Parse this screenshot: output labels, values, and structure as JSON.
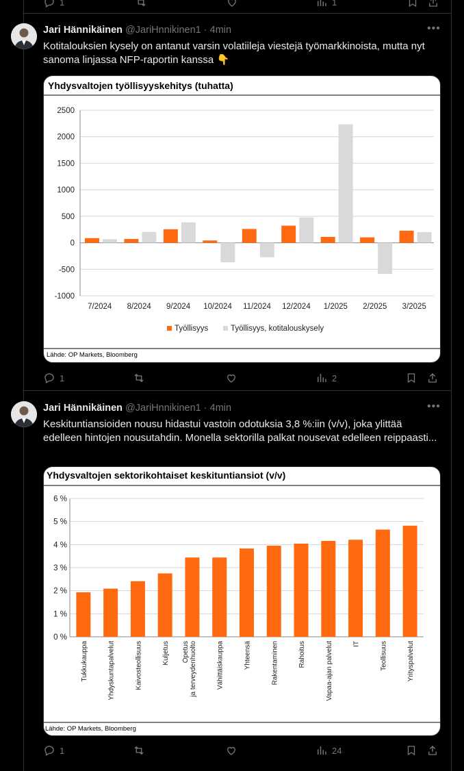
{
  "top_actions": {
    "reply_count": "1",
    "views_count": "1"
  },
  "tweets": [
    {
      "name": "Jari Hännikäinen",
      "handle": "@JariHnnikinen1",
      "separator": "·",
      "time": "4min",
      "text": "Kotitalouksien kysely on antanut varsin volatiileja viestejä työmarkkinoista, mutta nyt sanoma linjassa NFP-raportin kanssa 👇",
      "actions": {
        "reply_count": "1",
        "views_count": "2"
      }
    },
    {
      "name": "Jari Hännikäinen",
      "handle": "@JariHnnikinen1",
      "separator": "·",
      "time": "4min",
      "text": "Keskituntiansioiden nousu hidastui vastoin odotuksia 3,8 %:iin (v/v), joka ylittää edelleen hintojen nousutahdin. Monella sektorilla palkat nousevat edelleen reippaasti...",
      "actions": {
        "reply_count": "1",
        "views_count": "24"
      }
    }
  ],
  "chart_data": [
    {
      "type": "bar",
      "title": "Yhdysvaltojen työllisyyskehitys (tuhatta)",
      "categories": [
        "7/2024",
        "8/2024",
        "9/2024",
        "10/2024",
        "11/2024",
        "12/2024",
        "1/2025",
        "2/2025",
        "3/2025"
      ],
      "series": [
        {
          "name": "Työllisyys",
          "color": "#ff6a10",
          "values": [
            88,
            72,
            255,
            44,
            261,
            323,
            111,
            102,
            228
          ]
        },
        {
          "name": "Työllisyys, kotitalouskysely",
          "color": "#d9d9d9",
          "values": [
            67,
            205,
            385,
            -368,
            -273,
            478,
            2234,
            -588,
            201
          ]
        }
      ],
      "yticks": [
        "2500",
        "2000",
        "1500",
        "1000",
        "500",
        "0",
        "-500",
        "-1000"
      ],
      "ylim": [
        -1000,
        2500
      ],
      "grid": true,
      "legend": "bottom",
      "source": "Lähde: OP Markets, Bloomberg"
    },
    {
      "type": "bar",
      "title": "Yhdysvaltojen sektorikohtaiset keskituntiansiot (v/v)",
      "categories": [
        "Tukkukauppa",
        "Yhdyskuntapalvelut",
        "Kaivosteollisuus",
        "Kuljetus",
        "Opetus ja terveydenhuolto",
        "Vähittäiskauppa",
        "Yhteensä",
        "Rakentaminen",
        "Rahoitus",
        "Vapaa-ajan palvelut",
        "IT",
        "Teollisuus",
        "Yrityspalvelut"
      ],
      "series": [
        {
          "color": "#ff6a10",
          "values": [
            1.93,
            2.09,
            2.41,
            2.75,
            3.44,
            3.44,
            3.83,
            3.95,
            4.04,
            4.16,
            4.21,
            4.65,
            4.82
          ]
        }
      ],
      "yticks": [
        "6 %",
        "5 %",
        "4 %",
        "3 %",
        "2 %",
        "1 %",
        "0 %"
      ],
      "ylim": [
        0,
        6
      ],
      "grid": true,
      "source": "Lähde: OP Markets, Bloomberg"
    }
  ]
}
